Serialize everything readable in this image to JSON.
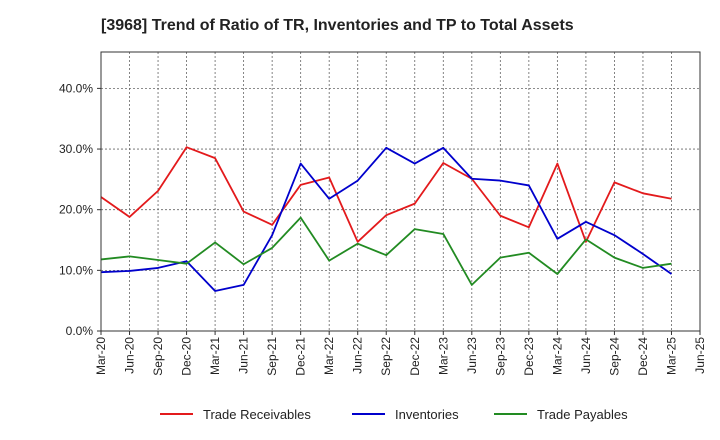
{
  "chart_data": {
    "type": "line",
    "title": "[3968]  Trend of Ratio of TR, Inventories and TP to Total Assets",
    "xlabel": "",
    "ylabel": "",
    "ylim": [
      0,
      0.46
    ],
    "ytick_values": [
      0,
      0.1,
      0.2,
      0.3,
      0.4
    ],
    "ytick_labels": [
      "0.0%",
      "10.0%",
      "20.0%",
      "30.0%",
      "40.0%"
    ],
    "categories": [
      "Mar-20",
      "Jun-20",
      "Sep-20",
      "Dec-20",
      "Mar-21",
      "Jun-21",
      "Sep-21",
      "Dec-21",
      "Mar-22",
      "Jun-22",
      "Sep-22",
      "Dec-22",
      "Mar-23",
      "Jun-23",
      "Sep-23",
      "Dec-23",
      "Mar-24",
      "Jun-24",
      "Sep-24",
      "Dec-24",
      "Mar-25",
      "Jun-25"
    ],
    "grid": true,
    "legend_position": "bottom",
    "series": [
      {
        "name": "Trade Receivables",
        "color": "#e31a1c",
        "values": [
          0.221,
          0.188,
          0.231,
          0.303,
          0.285,
          0.197,
          0.175,
          0.241,
          0.253,
          0.147,
          0.191,
          0.21,
          0.277,
          0.251,
          0.19,
          0.171,
          0.276,
          0.147,
          0.245,
          0.227,
          0.218,
          null
        ]
      },
      {
        "name": "Inventories",
        "color": "#0000cc",
        "values": [
          0.097,
          0.099,
          0.104,
          0.115,
          0.066,
          0.076,
          0.158,
          0.276,
          0.218,
          0.248,
          0.302,
          0.276,
          0.302,
          0.251,
          0.248,
          0.24,
          0.152,
          0.18,
          0.158,
          0.127,
          0.094,
          null
        ]
      },
      {
        "name": "Trade Payables",
        "color": "#228b22",
        "values": [
          0.118,
          0.123,
          0.117,
          0.111,
          0.146,
          0.11,
          0.137,
          0.187,
          0.116,
          0.144,
          0.125,
          0.168,
          0.16,
          0.076,
          0.121,
          0.129,
          0.094,
          0.151,
          0.121,
          0.104,
          0.111,
          null
        ]
      }
    ]
  }
}
